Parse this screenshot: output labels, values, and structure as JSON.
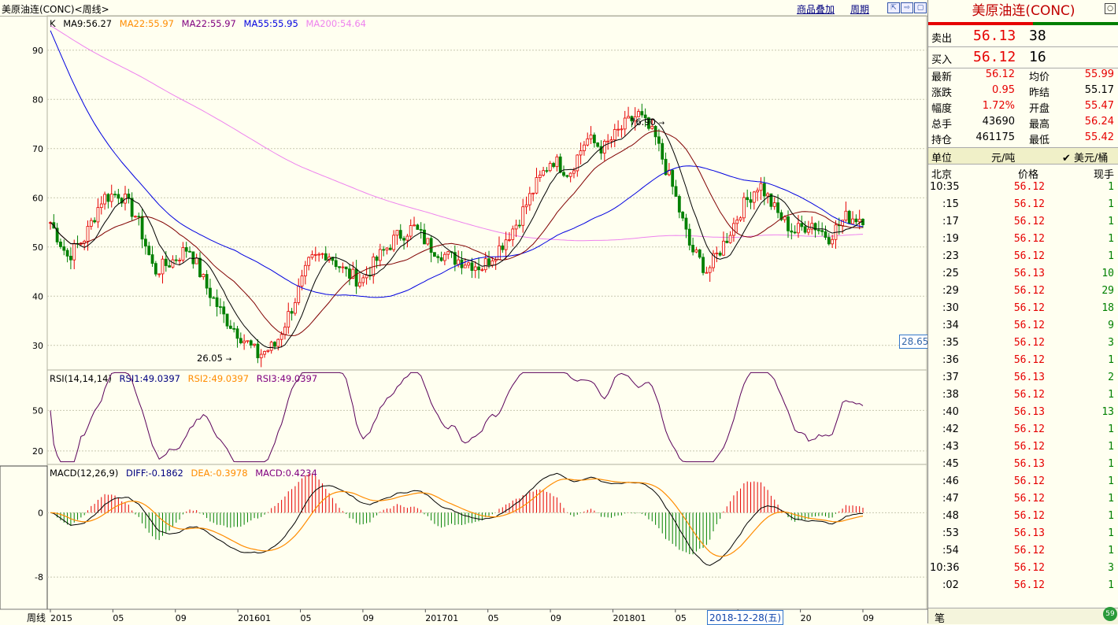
{
  "topbar": {
    "title": "美原油连(CONC)<周线>",
    "overlay_label": "商品叠加",
    "period_label": "周期"
  },
  "price_panel": {
    "legend": {
      "k": "K",
      "ma1": "MA9:56.27",
      "ma2": "MA22:55.97",
      "ma3": "MA22:55.97",
      "ma4": "MA55:55.95",
      "ma5": "MA200:54.64"
    },
    "y_ticks": [
      "90",
      "80",
      "70",
      "60",
      "50",
      "40",
      "30"
    ],
    "high_label": "76.90",
    "low_label": "26.05",
    "side_value": "28.65"
  },
  "rsi_panel": {
    "legend": {
      "name": "RSI(14,14,14)",
      "r1": "RSI1:49.0397",
      "r2": "RSI2:49.0397",
      "r3": "RSI3:49.0397"
    },
    "y_ticks": [
      "50",
      "20"
    ]
  },
  "macd_panel": {
    "legend": {
      "name": "MACD(12,26,9)",
      "diff": "DIFF:-0.1862",
      "dea": "DEA:-0.3978",
      "macd": "MACD:0.4234"
    },
    "y_ticks": [
      "0",
      "-8"
    ]
  },
  "x_axis": {
    "period_label": "周线",
    "ticks": [
      "2015",
      "05",
      "09",
      "201601",
      "05",
      "09",
      "201701",
      "05",
      "09",
      "201801",
      "05",
      "09",
      "20",
      "09"
    ],
    "cursor_date": "2018-12-28(五)"
  },
  "quote": {
    "title": "美原油连(CONC)",
    "sell_label": "卖出",
    "sell_price": "56.13",
    "sell_qty": "38",
    "buy_label": "买入",
    "buy_price": "56.12",
    "buy_qty": "16",
    "stats": [
      {
        "l1": "最新",
        "v1": "56.12",
        "l2": "均价",
        "v2": "55.99"
      },
      {
        "l1": "涨跌",
        "v1": "0.95",
        "l2": "昨结",
        "v2": "55.17"
      },
      {
        "l1": "幅度",
        "v1": "1.72%",
        "l2": "开盘",
        "v2": "55.47"
      },
      {
        "l1": "总手",
        "v1": "43690",
        "l2": "最高",
        "v2": "56.24"
      },
      {
        "l1": "持仓",
        "v1": "461175",
        "l2": "最低",
        "v2": "55.42"
      }
    ],
    "unit_label": "单位",
    "unit_cny": "元/吨",
    "unit_usd": "✔ 美元/桶",
    "trade_header": {
      "time": "北京",
      "price": "价格",
      "qty": "现手"
    },
    "trades": [
      {
        "t": "10:35",
        "p": "56.12",
        "q": "1"
      },
      {
        "t": ":15",
        "p": "56.12",
        "q": "1"
      },
      {
        "t": ":17",
        "p": "56.12",
        "q": "1"
      },
      {
        "t": ":19",
        "p": "56.12",
        "q": "1"
      },
      {
        "t": ":23",
        "p": "56.12",
        "q": "1"
      },
      {
        "t": ":25",
        "p": "56.13",
        "q": "10"
      },
      {
        "t": ":29",
        "p": "56.12",
        "q": "29"
      },
      {
        "t": ":30",
        "p": "56.12",
        "q": "18"
      },
      {
        "t": ":34",
        "p": "56.12",
        "q": "9"
      },
      {
        "t": ":35",
        "p": "56.12",
        "q": "3"
      },
      {
        "t": ":36",
        "p": "56.12",
        "q": "1"
      },
      {
        "t": ":37",
        "p": "56.13",
        "q": "2"
      },
      {
        "t": ":38",
        "p": "56.12",
        "q": "1"
      },
      {
        "t": ":40",
        "p": "56.13",
        "q": "13"
      },
      {
        "t": ":42",
        "p": "56.12",
        "q": "1"
      },
      {
        "t": ":43",
        "p": "56.12",
        "q": "1"
      },
      {
        "t": ":45",
        "p": "56.13",
        "q": "1"
      },
      {
        "t": ":46",
        "p": "56.12",
        "q": "1"
      },
      {
        "t": ":47",
        "p": "56.12",
        "q": "1"
      },
      {
        "t": ":48",
        "p": "56.12",
        "q": "1"
      },
      {
        "t": ":53",
        "p": "56.13",
        "q": "1"
      },
      {
        "t": ":54",
        "p": "56.12",
        "q": "1"
      },
      {
        "t": "10:36",
        "p": "56.12",
        "q": "3"
      },
      {
        "t": ":02",
        "p": "56.12",
        "q": "1"
      }
    ],
    "bottom_tab": "笔",
    "corner_badge": "59"
  },
  "colors": {
    "up": "#e60000",
    "down": "#008000",
    "ma9": "#000000",
    "ma22": "#800000",
    "ma55": "#0000e0",
    "ma200": "#ee82ee",
    "rsi": "#5a005a",
    "diff": "#000000",
    "dea": "#ff8c00"
  },
  "chart_data": [
    {
      "type": "candlestick",
      "title": "美原油连(CONC)<周线>",
      "x": [
        "201501",
        "05",
        "09",
        "201601",
        "05",
        "09",
        "201701",
        "05",
        "09",
        "201801",
        "05",
        "09",
        "201901",
        "09"
      ],
      "close_path": [
        55,
        48,
        52,
        60,
        61,
        56,
        45,
        47,
        50,
        42,
        36,
        32,
        28,
        30,
        38,
        47,
        49,
        45,
        43,
        48,
        52,
        54,
        50,
        48,
        47,
        46,
        50,
        55,
        62,
        68,
        65,
        72,
        70,
        74,
        77,
        72,
        62,
        50,
        45,
        51,
        58,
        63,
        57,
        53,
        55,
        52,
        56,
        56
      ],
      "ma9_last": 56.27,
      "ma22_last": 55.97,
      "ma55_last": 55.95,
      "ma200_last": 54.64,
      "high": 76.9,
      "low": 26.05,
      "ylim": [
        25,
        97
      ],
      "yticks": [
        30,
        40,
        50,
        60,
        70,
        80,
        90
      ]
    },
    {
      "type": "line",
      "name": "RSI",
      "rsi_last": 49.0397,
      "ylim": [
        10,
        80
      ],
      "yticks": [
        20,
        50
      ]
    },
    {
      "type": "bar+line",
      "name": "MACD",
      "diff_last": -0.1862,
      "dea_last": -0.3978,
      "macd_last": 0.4234,
      "ylim": [
        -12,
        6
      ],
      "yticks": [
        -8,
        0
      ]
    }
  ]
}
